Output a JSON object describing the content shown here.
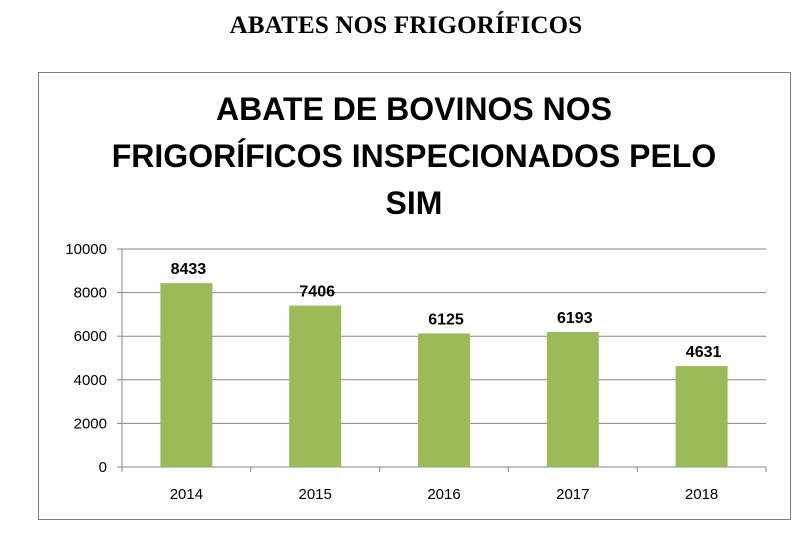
{
  "page": {
    "heading": "ABATES NOS FRIGORÍFICOS"
  },
  "chart_data": {
    "type": "bar",
    "title_lines": [
      "ABATE DE BOVINOS NOS",
      "FRIGORÍFICOS INSPECIONADOS PELO",
      "SIM"
    ],
    "categories": [
      "2014",
      "2015",
      "2016",
      "2017",
      "2018"
    ],
    "values": [
      8433,
      7406,
      6125,
      6193,
      4631
    ],
    "data_labels": [
      "8433",
      "7406",
      "6125",
      "6193",
      "4631"
    ],
    "y_ticks": [
      "0",
      "2000",
      "4000",
      "6000",
      "8000",
      "10000"
    ],
    "ylim": [
      0,
      10000
    ],
    "grid": "horizontal",
    "legend": "none",
    "colors": {
      "bar": "#9bbb59",
      "grid": "#868686",
      "axis": "#868686"
    }
  }
}
